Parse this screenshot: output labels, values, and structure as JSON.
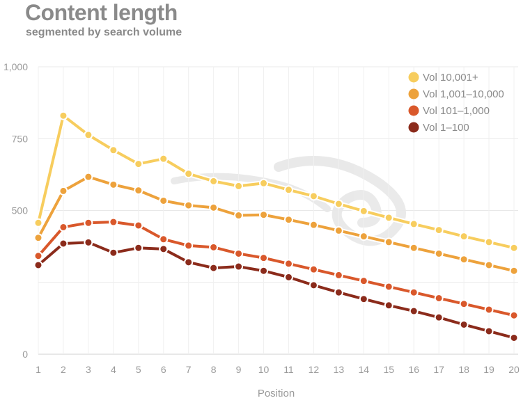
{
  "header": {
    "title": "Content length",
    "subtitle": "segmented by search volume"
  },
  "chart_data": {
    "type": "line",
    "title": "Content length",
    "subtitle": "segmented by search volume",
    "xlabel": "Position",
    "ylabel": "",
    "x": [
      1,
      2,
      3,
      4,
      5,
      6,
      7,
      8,
      9,
      10,
      11,
      12,
      13,
      14,
      15,
      16,
      17,
      18,
      19,
      20
    ],
    "ylim": [
      0,
      1000
    ],
    "yticks": [
      0,
      250,
      500,
      750,
      1000
    ],
    "ytick_labels": [
      "0",
      "",
      "500",
      "750",
      "1,000"
    ],
    "grid": true,
    "legend_position": "top-right",
    "series": [
      {
        "name": "Vol 10,001+",
        "color": "#f7cd5e",
        "values": [
          457,
          830,
          763,
          710,
          662,
          680,
          628,
          602,
          585,
          595,
          572,
          550,
          523,
          498,
          475,
          453,
          432,
          410,
          390,
          370
        ]
      },
      {
        "name": "Vol 1,001–10,000",
        "color": "#eda23c",
        "values": [
          405,
          568,
          617,
          590,
          570,
          534,
          518,
          510,
          483,
          485,
          468,
          450,
          430,
          410,
          390,
          370,
          350,
          330,
          310,
          290
        ]
      },
      {
        "name": "Vol 101–1,000",
        "color": "#d9582b",
        "values": [
          342,
          442,
          457,
          460,
          448,
          400,
          378,
          372,
          350,
          335,
          315,
          295,
          275,
          255,
          235,
          215,
          195,
          175,
          155,
          135
        ]
      },
      {
        "name": "Vol 1–100",
        "color": "#8b2b1b",
        "values": [
          310,
          385,
          389,
          353,
          370,
          366,
          320,
          300,
          305,
          290,
          268,
          240,
          215,
          192,
          170,
          150,
          128,
          103,
          80,
          57
        ]
      }
    ]
  }
}
